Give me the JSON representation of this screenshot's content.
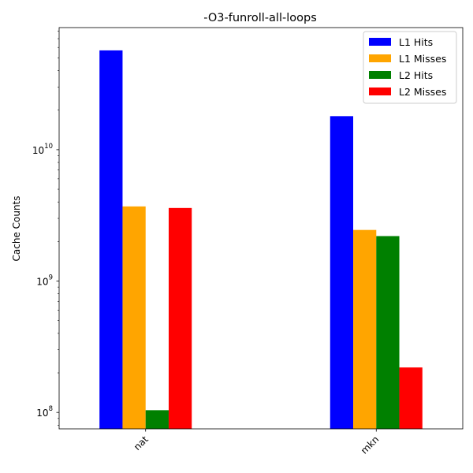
{
  "chart_data": {
    "type": "bar",
    "title": "-O3-funroll-all-loops",
    "xlabel": "",
    "ylabel": "Cache Counts",
    "yscale": "log",
    "ylim": [
      75000000,
      85000000000
    ],
    "categories": [
      "nat",
      "mkn"
    ],
    "series": [
      {
        "name": "L1 Hits",
        "color": "#0000ff",
        "values": [
          57000000000,
          18000000000
        ]
      },
      {
        "name": "L1 Misses",
        "color": "#ffa500",
        "values": [
          3700000000,
          2450000000
        ]
      },
      {
        "name": "L2 Hits",
        "color": "#008000",
        "values": [
          104000000,
          2200000000
        ]
      },
      {
        "name": "L2 Misses",
        "color": "#ff0000",
        "values": [
          3600000000,
          220000000
        ]
      }
    ],
    "y_major_ticks": [
      {
        "value": 100000000,
        "base": "10",
        "exp": "8"
      },
      {
        "value": 1000000000,
        "base": "10",
        "exp": "9"
      },
      {
        "value": 10000000000,
        "base": "10",
        "exp": "10"
      }
    ],
    "legend_position": "upper right",
    "grid": false
  }
}
